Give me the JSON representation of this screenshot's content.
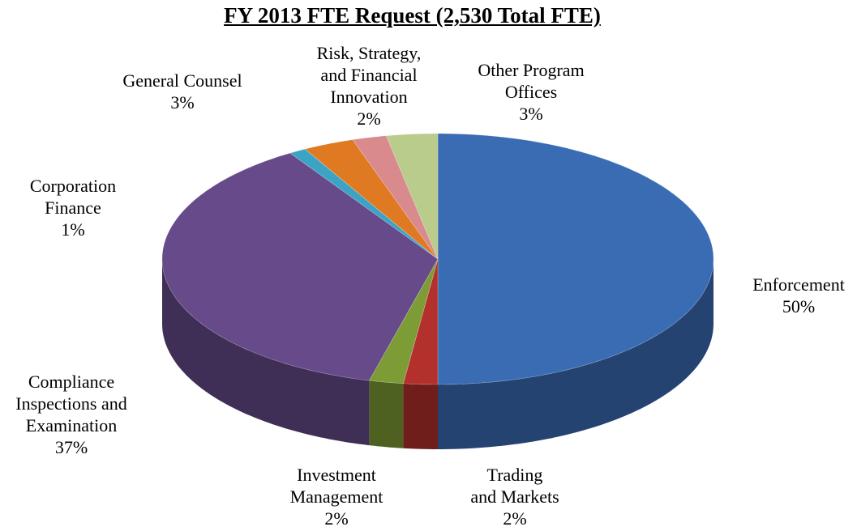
{
  "chart_data": {
    "type": "pie",
    "title": "FY 2013 FTE Request (2,530 Total FTE)",
    "categories": [
      "Enforcement",
      "Trading\nand Markets",
      "Investment\nManagement",
      "Compliance\nInspections and\nExamination",
      "Corporation\nFinance",
      "General Counsel",
      "Risk, Strategy,\nand Financial\nInnovation",
      "Other Program\nOffices"
    ],
    "values": [
      50,
      2,
      2,
      37,
      1,
      3,
      2,
      3
    ],
    "value_labels": [
      "50%",
      "2%",
      "2%",
      "37%",
      "1%",
      "3%",
      "2%",
      "3%"
    ],
    "colors": [
      "#3a6cb4",
      "#b3302d",
      "#7d9c36",
      "#664a8a",
      "#3ba3c4",
      "#e07a22",
      "#d88a8c",
      "#b9cc8c"
    ]
  }
}
